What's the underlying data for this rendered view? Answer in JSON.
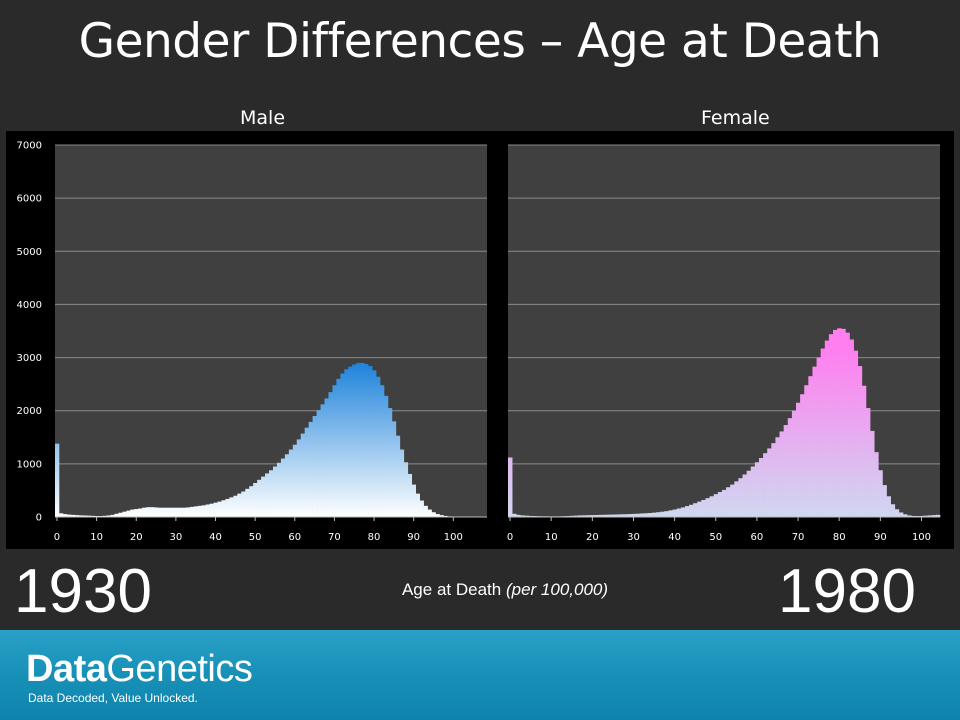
{
  "title": "Gender Differences – Age at Death",
  "panels": {
    "left_label": "Male",
    "right_label": "Female"
  },
  "footer_text": {
    "year_left": "1930",
    "year_right": "1980",
    "caption_main": "Age at Death",
    "caption_italic": "(per 100,000)"
  },
  "brand": {
    "name_part1": "Data",
    "name_part2": "Genetics",
    "tagline": "Data Decoded, Value Unlocked."
  },
  "colors": {
    "male_top": "#0a78d8",
    "male_bottom": "#ffffff",
    "female_top": "#ff7ff0",
    "female_bottom": "#cfd8f0",
    "plot_bg": "#404040",
    "grid": "#8a8a8a"
  },
  "chart_data": [
    {
      "type": "bar",
      "series_name": "Male",
      "ylim": [
        0,
        7000
      ],
      "y_ticks": [
        0,
        1000,
        2000,
        3000,
        4000,
        5000,
        6000,
        7000
      ],
      "x_ticks": [
        0,
        10,
        20,
        30,
        40,
        50,
        60,
        70,
        80,
        90,
        100
      ],
      "x_start": 0,
      "values": [
        1380,
        70,
        55,
        45,
        40,
        35,
        30,
        28,
        25,
        22,
        18,
        18,
        22,
        28,
        40,
        60,
        80,
        100,
        120,
        140,
        150,
        160,
        175,
        185,
        185,
        180,
        175,
        175,
        175,
        175,
        175,
        175,
        175,
        180,
        190,
        200,
        210,
        220,
        235,
        250,
        270,
        290,
        315,
        340,
        370,
        400,
        440,
        480,
        530,
        580,
        640,
        700,
        760,
        820,
        880,
        950,
        1020,
        1100,
        1180,
        1270,
        1360,
        1460,
        1570,
        1680,
        1790,
        1900,
        2010,
        2120,
        2230,
        2350,
        2480,
        2600,
        2700,
        2780,
        2830,
        2870,
        2900,
        2900,
        2880,
        2840,
        2760,
        2640,
        2480,
        2280,
        2050,
        1800,
        1530,
        1270,
        1030,
        810,
        610,
        440,
        310,
        210,
        140,
        90,
        55,
        35,
        20,
        12,
        8,
        5,
        3,
        2,
        1,
        1,
        1,
        1,
        1
      ],
      "title": "",
      "xlabel": "",
      "ylabel": ""
    },
    {
      "type": "bar",
      "series_name": "Female",
      "ylim": [
        0,
        7000
      ],
      "y_ticks": [
        0,
        1000,
        2000,
        3000,
        4000,
        5000,
        6000,
        7000
      ],
      "x_ticks": [
        0,
        10,
        20,
        30,
        40,
        50,
        60,
        70,
        80,
        90,
        100
      ],
      "x_start": 0,
      "values": [
        1120,
        60,
        40,
        30,
        25,
        20,
        18,
        15,
        14,
        13,
        12,
        12,
        13,
        15,
        18,
        22,
        26,
        30,
        32,
        34,
        36,
        38,
        40,
        42,
        44,
        46,
        48,
        50,
        52,
        55,
        58,
        62,
        66,
        70,
        75,
        82,
        90,
        100,
        110,
        125,
        140,
        160,
        180,
        205,
        230,
        260,
        290,
        320,
        355,
        390,
        430,
        470,
        510,
        560,
        610,
        670,
        730,
        800,
        870,
        950,
        1030,
        1110,
        1200,
        1290,
        1390,
        1500,
        1610,
        1730,
        1860,
        2000,
        2150,
        2310,
        2480,
        2650,
        2830,
        3000,
        3170,
        3320,
        3440,
        3520,
        3550,
        3540,
        3470,
        3340,
        3130,
        2840,
        2470,
        2050,
        1620,
        1220,
        880,
        600,
        390,
        240,
        145,
        85,
        50,
        30,
        20,
        18,
        20,
        25,
        30,
        35,
        40
      ],
      "title": "",
      "xlabel": "",
      "ylabel": ""
    }
  ]
}
